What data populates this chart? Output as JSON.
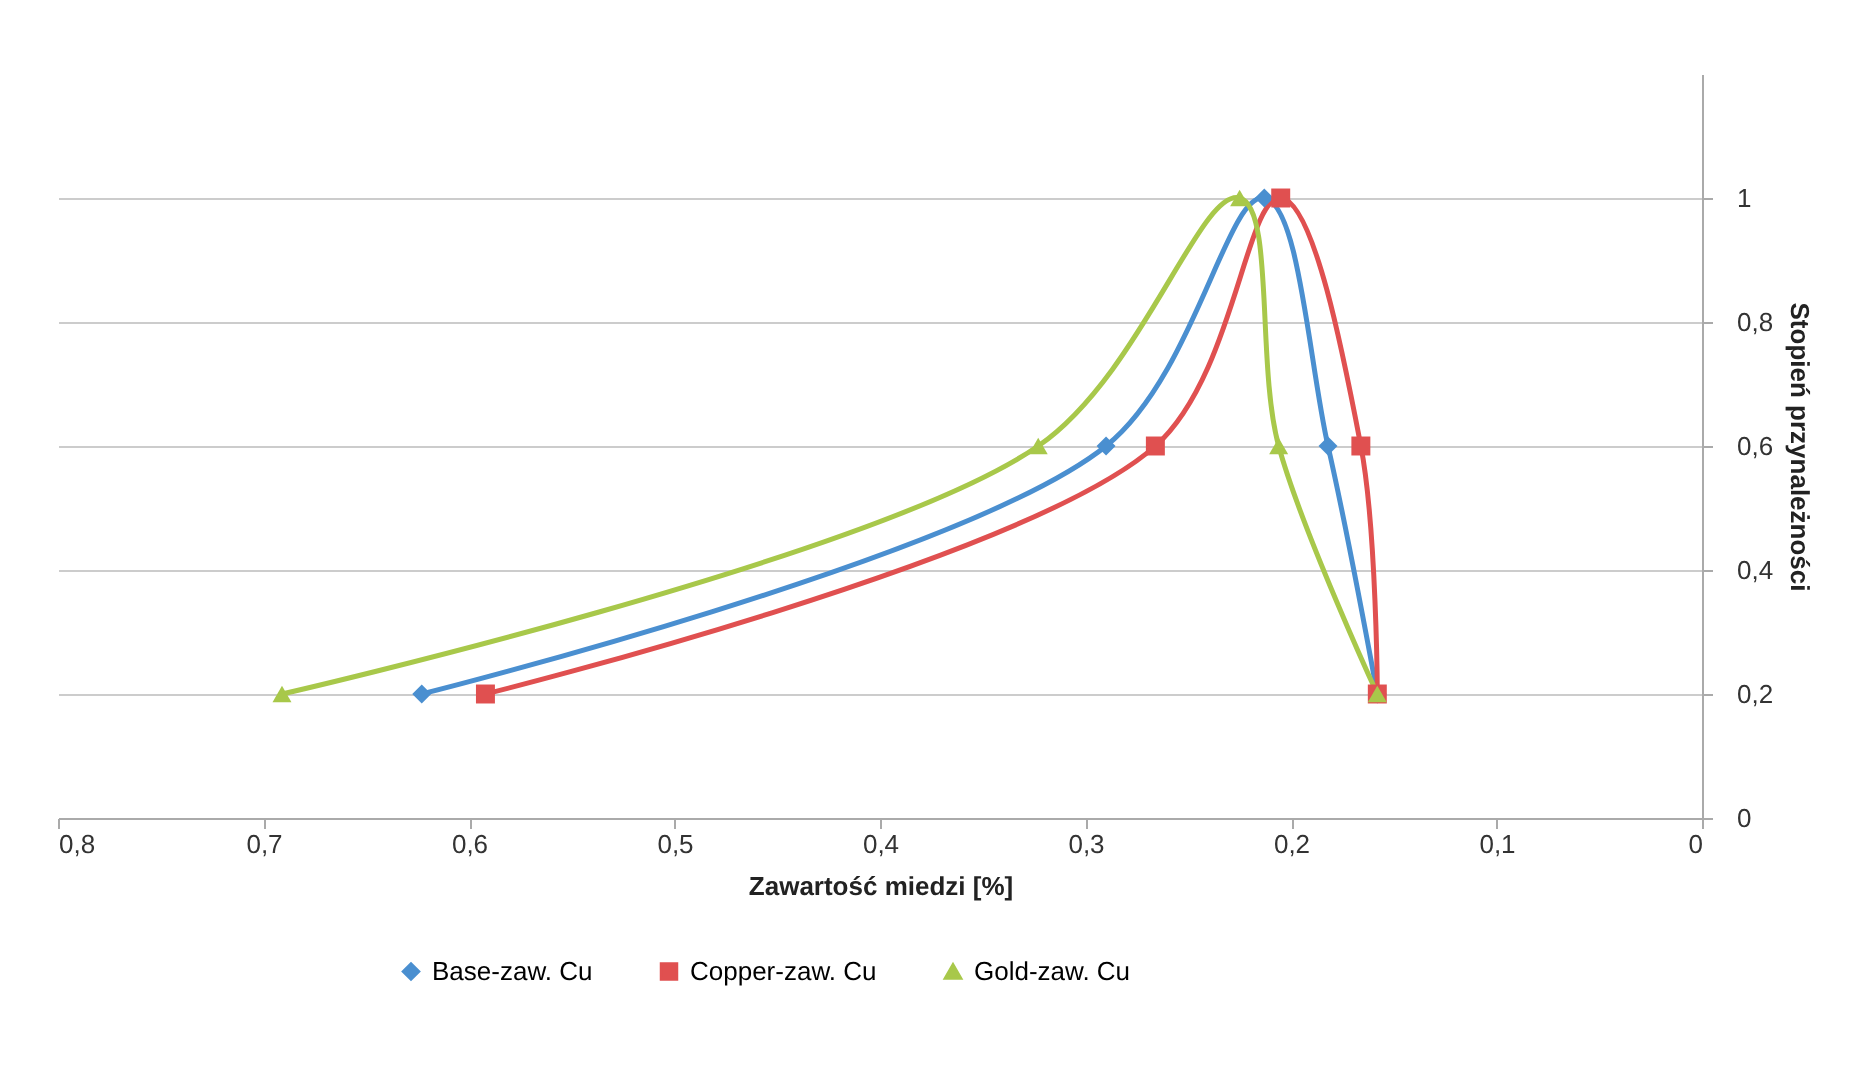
{
  "chart_data": {
    "type": "line",
    "xlabel": "Zawartość miedzi [%]",
    "ylabel": "Stopień przynależności",
    "xlim": [
      0.8,
      0
    ],
    "xticks": [
      {
        "value": 0.8,
        "label": "0,8"
      },
      {
        "value": 0.7,
        "label": "0,7"
      },
      {
        "value": 0.6,
        "label": "0,6"
      },
      {
        "value": 0.5,
        "label": "0,5"
      },
      {
        "value": 0.4,
        "label": "0,4"
      },
      {
        "value": 0.3,
        "label": "0,3"
      },
      {
        "value": 0.2,
        "label": "0,2"
      },
      {
        "value": 0.1,
        "label": "0,1"
      },
      0
    ],
    "ylim": [
      0,
      1.2
    ],
    "yticks": [
      0,
      {
        "value": 0.2,
        "label": "0,2"
      },
      {
        "value": 0.4,
        "label": "0,4"
      },
      {
        "value": 0.6,
        "label": "0,6"
      },
      {
        "value": 0.8,
        "label": "0,8"
      },
      1
    ],
    "grid": "y",
    "legend": "bottom",
    "series": [
      {
        "name": "Base-zaw. Cu",
        "color": "#4a8fd0",
        "marker": "diamond",
        "x": [
          0.623,
          0.29,
          0.213,
          0.182,
          0.158
        ],
        "values": [
          0.2,
          0.6,
          1,
          0.6,
          0.2
        ]
      },
      {
        "name": "Copper-zaw. Cu",
        "color": "#e05050",
        "marker": "square",
        "x": [
          0.592,
          0.266,
          0.205,
          0.166,
          0.158
        ],
        "values": [
          0.2,
          0.6,
          1,
          0.6,
          0.2
        ]
      },
      {
        "name": "Gold-zaw. Cu",
        "color": "#a8c84a",
        "marker": "triangle",
        "x": [
          0.691,
          0.323,
          0.225,
          0.206,
          0.158
        ],
        "values": [
          0.2,
          0.6,
          1,
          0.6,
          0.2
        ]
      }
    ]
  }
}
